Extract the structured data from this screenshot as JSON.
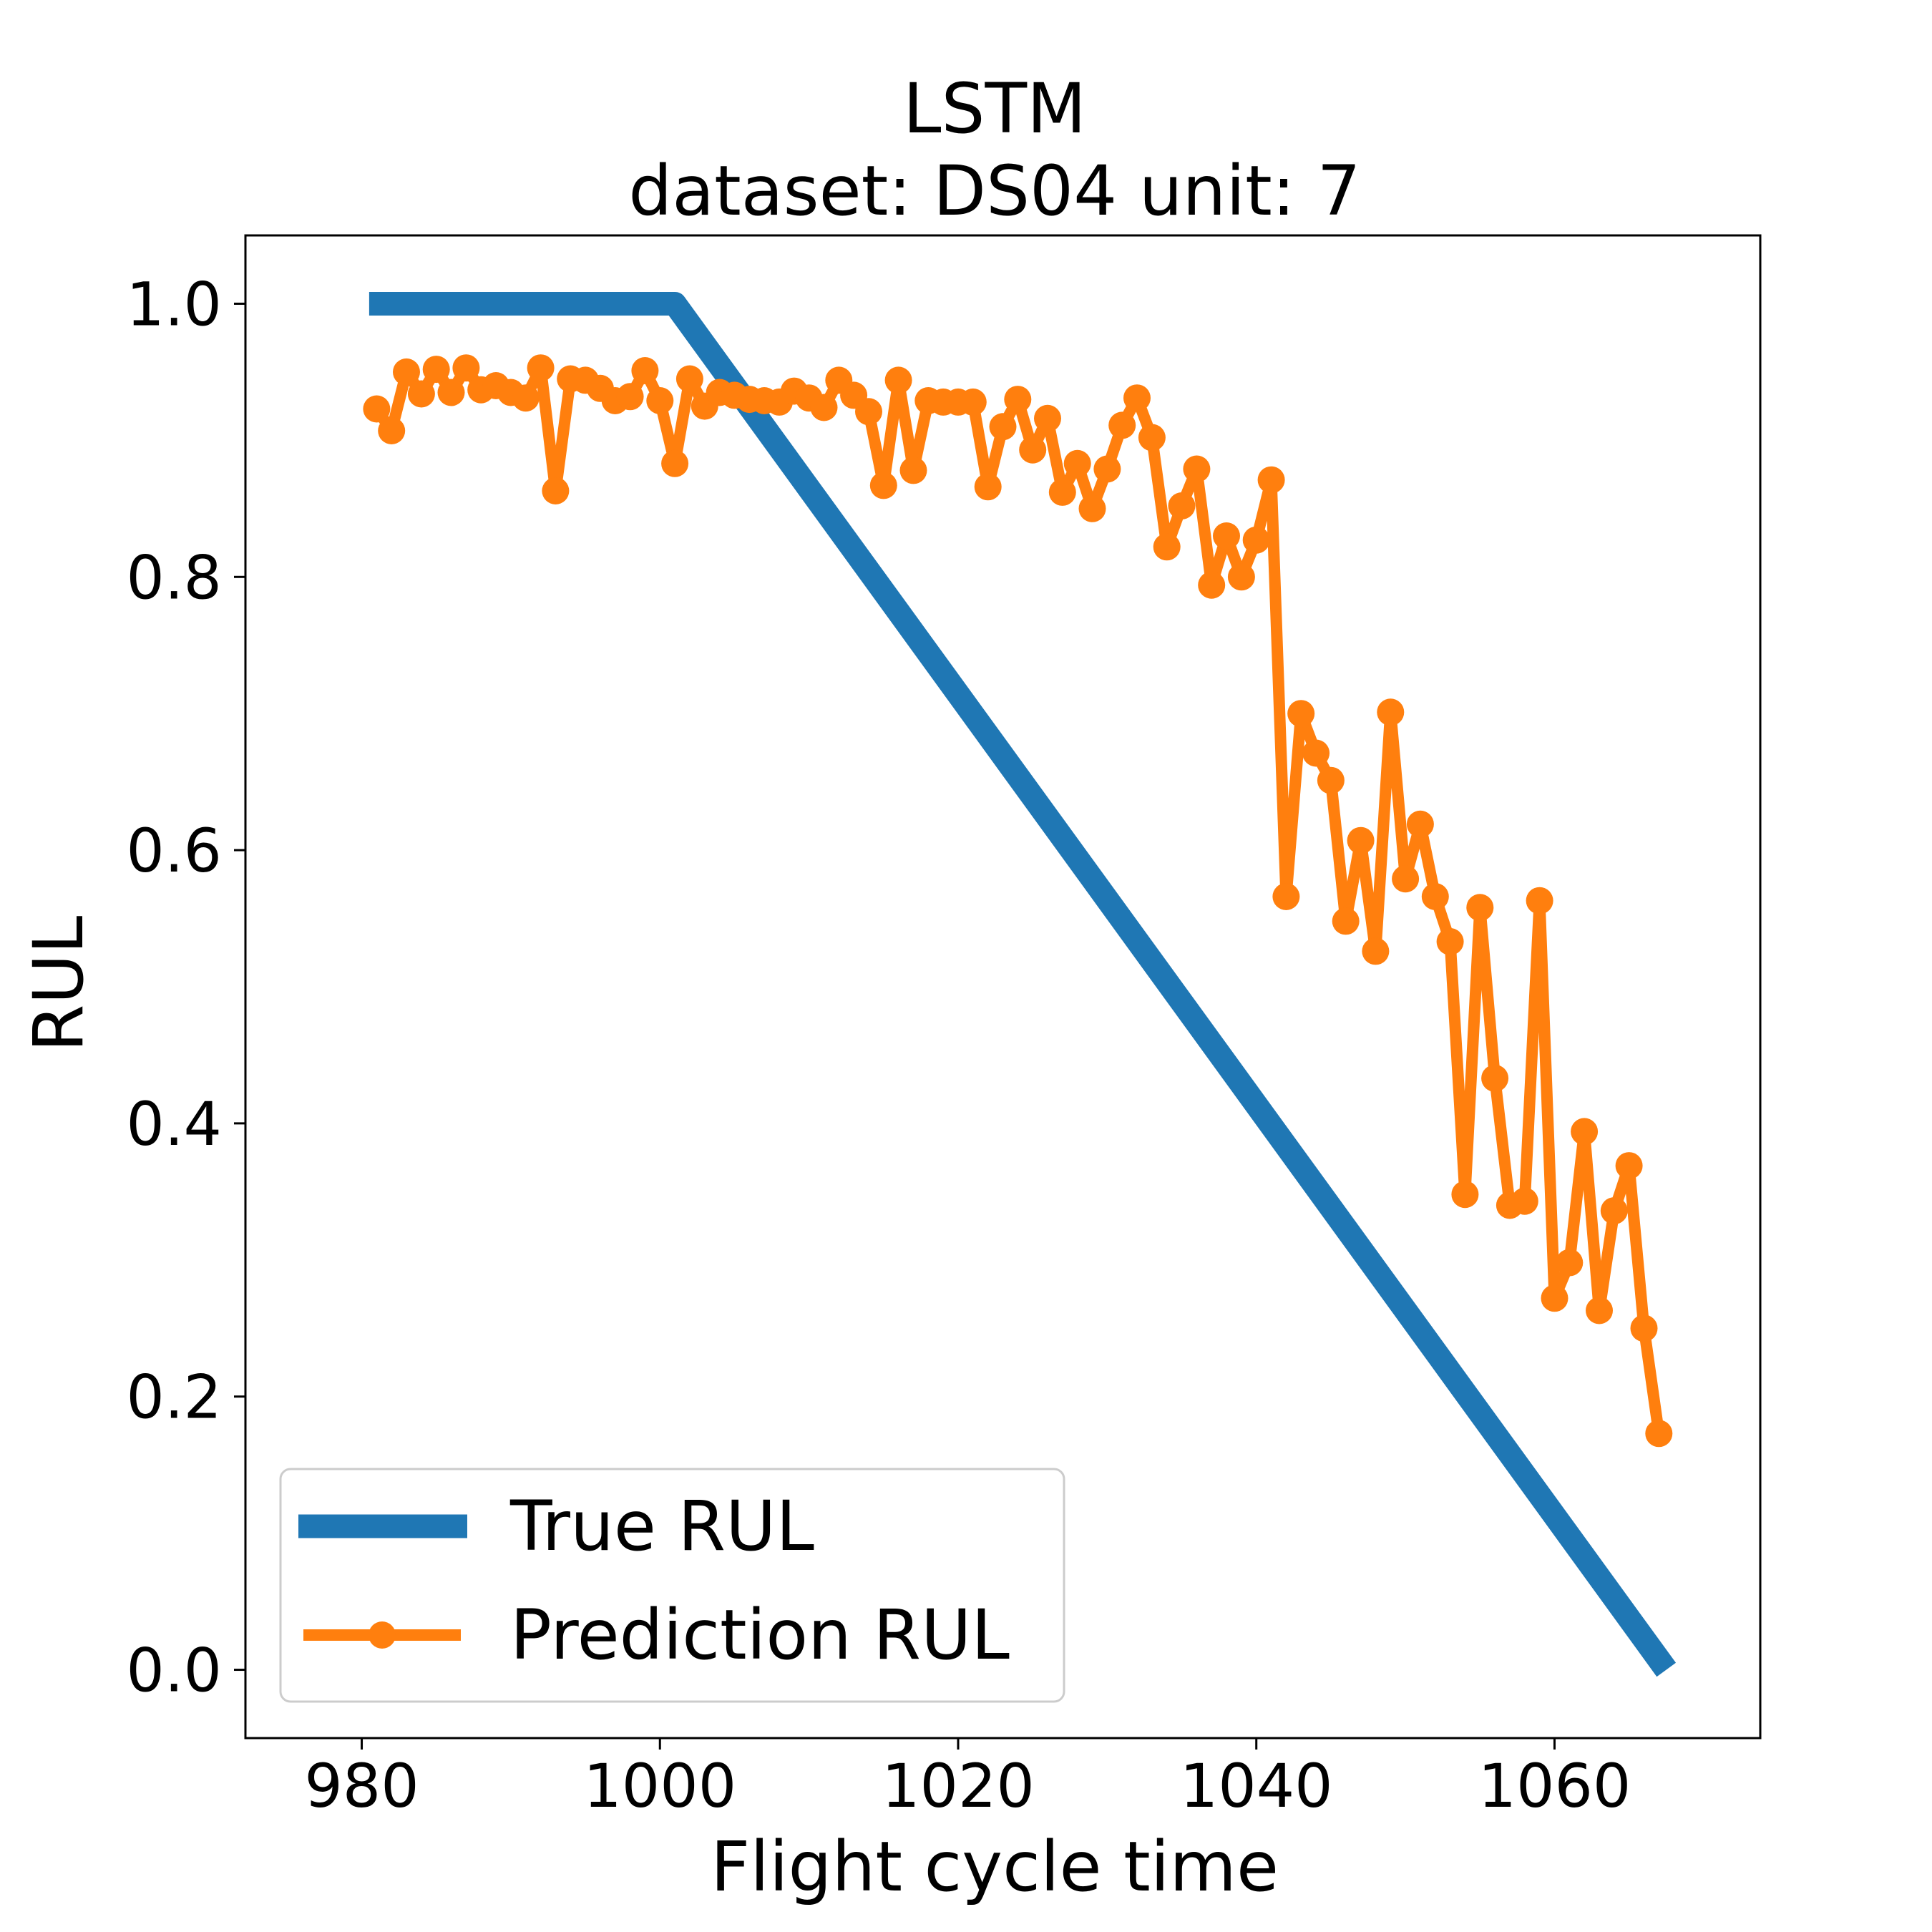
{
  "chart_data": {
    "type": "line",
    "title": "LSTM",
    "subtitle": "dataset: DS04 unit: 7",
    "xlabel": "Flight cycle time",
    "ylabel": "RUL",
    "xlim": [
      972.2,
      1073.8
    ],
    "ylim": [
      -0.05,
      1.05
    ],
    "xticks": [
      980,
      1000,
      1020,
      1040,
      1060
    ],
    "xtick_labels": [
      "980",
      "1000",
      "1020",
      "1040",
      "1060"
    ],
    "yticks": [
      0.0,
      0.2,
      0.4,
      0.6,
      0.8,
      1.0
    ],
    "ytick_labels": [
      "0.0",
      "0.2",
      "0.4",
      "0.6",
      "0.8",
      "1.0"
    ],
    "grid": false,
    "legend_position": "lower-left",
    "series": [
      {
        "name": "True RUL",
        "color": "#1f77b4",
        "marker": "none",
        "x": [
          980.5,
          1001,
          1067.5
        ],
        "y": [
          1.0,
          1.0,
          0.0
        ]
      },
      {
        "name": "Prediction RUL",
        "color": "#ff7f0e",
        "marker": "circle",
        "x": [
          981,
          982,
          983,
          984,
          985,
          986,
          987,
          988,
          989,
          990,
          991,
          992,
          993,
          994,
          995,
          996,
          997,
          998,
          999,
          1000,
          1001,
          1002,
          1003,
          1004,
          1005,
          1006,
          1007,
          1008,
          1009,
          1010,
          1011,
          1012,
          1013,
          1014,
          1015,
          1016,
          1017,
          1018,
          1019,
          1020,
          1021,
          1022,
          1023,
          1024,
          1025,
          1026,
          1027,
          1028,
          1029,
          1030,
          1031,
          1032,
          1033,
          1034,
          1035,
          1036,
          1037,
          1038,
          1039,
          1040,
          1041,
          1042,
          1043,
          1044,
          1045,
          1046,
          1047,
          1048,
          1049,
          1050,
          1051,
          1052,
          1053,
          1054,
          1055,
          1056,
          1057,
          1058,
          1059,
          1060,
          1061,
          1062,
          1063,
          1064,
          1065,
          1066,
          1067
        ],
        "y": [
          0.923,
          0.907,
          0.95,
          0.934,
          0.952,
          0.935,
          0.953,
          0.937,
          0.94,
          0.935,
          0.931,
          0.953,
          0.863,
          0.945,
          0.944,
          0.938,
          0.929,
          0.932,
          0.951,
          0.929,
          0.883,
          0.945,
          0.925,
          0.935,
          0.933,
          0.93,
          0.929,
          0.928,
          0.936,
          0.931,
          0.924,
          0.944,
          0.933,
          0.921,
          0.867,
          0.944,
          0.878,
          0.929,
          0.928,
          0.928,
          0.928,
          0.866,
          0.91,
          0.93,
          0.893,
          0.916,
          0.862,
          0.883,
          0.85,
          0.879,
          0.911,
          0.931,
          0.902,
          0.822,
          0.852,
          0.879,
          0.794,
          0.83,
          0.8,
          0.827,
          0.871,
          0.566,
          0.7,
          0.671,
          0.651,
          0.548,
          0.607,
          0.526,
          0.701,
          0.579,
          0.619,
          0.566,
          0.533,
          0.348,
          0.558,
          0.433,
          0.34,
          0.343,
          0.563,
          0.272,
          0.298,
          0.394,
          0.263,
          0.336,
          0.369,
          0.25,
          0.173
        ]
      }
    ]
  }
}
